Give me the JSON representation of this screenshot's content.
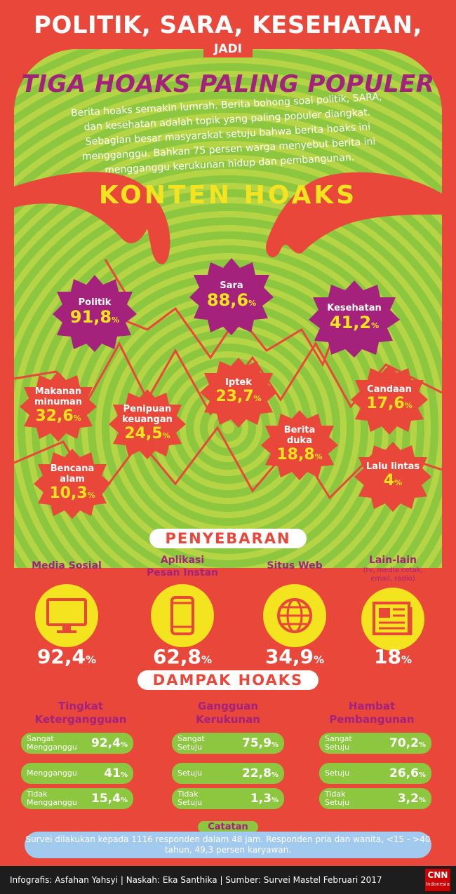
{
  "header": {
    "title_line1": "POLITIK, SARA, KESEHATAN,",
    "connector": "JADI",
    "title_line2": "TIGA HOAKS PALING POPULER",
    "intro": "Berita hoaks semakin lumrah. Berita bohong soal politik, SARA, dan kesehatan adalah topik yang paling populer diangkat. Sebagian besar masyarakat setuju bahwa berita hoaks ini mengganggu. Bahkan 75 persen warga menyebut berita ini mengganggu kerukunan hidup dan pembangunan."
  },
  "konten": {
    "heading": "KONTEN HOAKS",
    "top": [
      {
        "label": "Politik",
        "value": "91,8",
        "unit": "%"
      },
      {
        "label": "Sara",
        "value": "88,6",
        "unit": "%"
      },
      {
        "label": "Kesehatan",
        "value": "41,2",
        "unit": "%"
      }
    ],
    "others": [
      {
        "label": "Makanan minuman",
        "value": "32,6",
        "unit": "%"
      },
      {
        "label": "Penipuan keuangan",
        "value": "24,5",
        "unit": "%"
      },
      {
        "label": "Iptek",
        "value": "23,7",
        "unit": "%"
      },
      {
        "label": "Berita duka",
        "value": "18,8",
        "unit": "%"
      },
      {
        "label": "Candaan",
        "value": "17,6",
        "unit": "%"
      },
      {
        "label": "Bencana alam",
        "value": "10,3",
        "unit": "%"
      },
      {
        "label": "Lalu lintas",
        "value": "4",
        "unit": "%"
      }
    ]
  },
  "penyebaran": {
    "heading": "PENYEBARAN",
    "items": [
      {
        "label": "Media Sosial",
        "sub": "",
        "value": "92,4",
        "unit": "%",
        "icon": "monitor-icon"
      },
      {
        "label": "Aplikasi Pesan Instan",
        "sub": "",
        "value": "62,8",
        "unit": "%",
        "icon": "smartphone-icon"
      },
      {
        "label": "Situs Web",
        "sub": "",
        "value": "34,9",
        "unit": "%",
        "icon": "globe-icon"
      },
      {
        "label": "Lain-lain",
        "sub": "(tv, media cetak, email, radio)",
        "value": "18",
        "unit": "%",
        "icon": "newspaper-icon"
      }
    ]
  },
  "dampak": {
    "heading": "DAMPAK HOAKS",
    "groups": [
      {
        "title": "Tingkat Ketergangguan",
        "rows": [
          {
            "label": "Sangat Mengganggu",
            "value": "92,4",
            "unit": "%"
          },
          {
            "label": "Mengganggu",
            "value": "41",
            "unit": "%"
          },
          {
            "label": "Tidak Mengganggu",
            "value": "15,4",
            "unit": "%"
          }
        ]
      },
      {
        "title": "Gangguan Kerukunan",
        "rows": [
          {
            "label": "Sangat Setuju",
            "value": "75,9",
            "unit": "%"
          },
          {
            "label": "Setuju",
            "value": "22,8",
            "unit": "%"
          },
          {
            "label": "Tidak Setuju",
            "value": "1,3",
            "unit": "%"
          }
        ]
      },
      {
        "title": "Hambat Pembangunan",
        "rows": [
          {
            "label": "Sangat Setuju",
            "value": "70,2",
            "unit": "%"
          },
          {
            "label": "Setuju",
            "value": "26,6",
            "unit": "%"
          },
          {
            "label": "Tidak Setuju",
            "value": "3,2",
            "unit": "%"
          }
        ]
      }
    ]
  },
  "catatan": {
    "heading": "Catatan",
    "text": "Survei dilakukan kepada 1116 responden dalam 48 jam. Responden pria dan wanita, <15 - >40 tahun, 49,3 persen karyawan."
  },
  "footer": {
    "credits": "Infografis: Asfahan Yahsyi | Naskah: Eka Santhika | Sumber: Survei Mastel Februari 2017",
    "logo": "CNN",
    "logo_sub": "Indonesia"
  },
  "colors": {
    "red": "#e8473a",
    "green": "#8dc63f",
    "purple": "#a4227c",
    "yellow": "#f4e31f"
  }
}
